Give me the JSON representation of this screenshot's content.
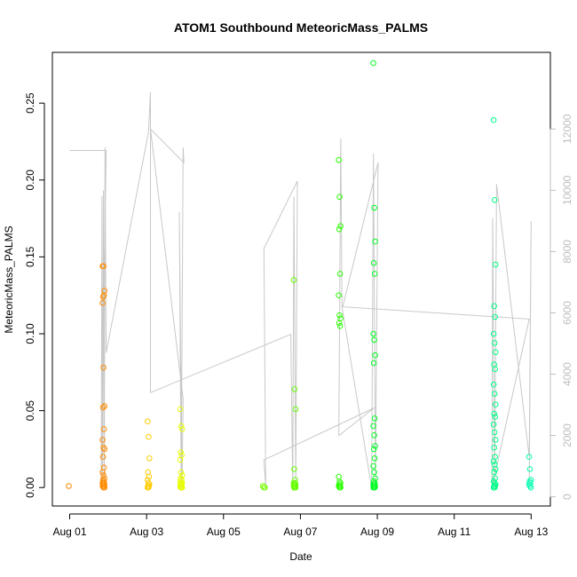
{
  "chart_data": {
    "type": "scatter",
    "title": "ATOM1 Southbound MeteoricMass_PALMS",
    "xlabel": "Date",
    "ylabel": "MeteoricMass_PALMS",
    "x_ticks": [
      "Aug 01",
      "Aug 03",
      "Aug 05",
      "Aug 07",
      "Aug 09",
      "Aug 11",
      "Aug 13"
    ],
    "x_tick_days": [
      1,
      3,
      5,
      7,
      9,
      11,
      13
    ],
    "xlim_days": [
      0.55,
      13.5
    ],
    "ylim": [
      -0.012,
      0.283
    ],
    "y_ticks": [
      0.0,
      0.05,
      0.1,
      0.15,
      0.2,
      0.25
    ],
    "y_tick_labels": [
      "0.00",
      "0.05",
      "0.10",
      "0.15",
      "0.20",
      "0.25"
    ],
    "y2_lim": [
      -300,
      14500
    ],
    "y2_ticks": [
      0,
      2000,
      4000,
      6000,
      8000,
      10000,
      12000
    ],
    "y2_tick_labels": [
      "0",
      "2000",
      "4000",
      "6000",
      "8000",
      "10000",
      "12000"
    ],
    "point_color_gradient": [
      "#ff8c00",
      "#ffd700",
      "#ffff00",
      "#7fff00",
      "#00ff00",
      "#00ff7f",
      "#00ffc8"
    ],
    "altitude_line_color": "#c8c8c8",
    "series": [
      {
        "x_day": 1.0,
        "color": "#ff8800",
        "values": [
          0.001
        ]
      },
      {
        "x_day": 1.88,
        "color": "#ff8c00",
        "values": [
          0.144,
          0.144,
          0.128,
          0.124,
          0.125,
          0.12,
          0.078,
          0.053,
          0.052,
          0.038,
          0.031,
          0.026,
          0.025,
          0.02,
          0.013,
          0.01,
          0.008,
          0.006,
          0.005,
          0.004,
          0.003,
          0.003,
          0.002,
          0.002,
          0.001,
          0.001,
          0.0,
          0.0
        ]
      },
      {
        "x_day": 3.05,
        "color": "#ffcc00",
        "values": [
          0.043,
          0.033,
          0.019,
          0.01,
          0.007,
          0.005,
          0.003,
          0.002,
          0.001,
          0.001,
          0.0,
          0.0
        ]
      },
      {
        "x_day": 3.9,
        "color": "#e8ff00",
        "values": [
          0.051,
          0.04,
          0.038,
          0.023,
          0.021,
          0.018,
          0.01,
          0.008,
          0.006,
          0.005,
          0.004,
          0.003,
          0.003,
          0.002,
          0.002,
          0.001,
          0.001,
          0.0,
          0.0,
          0.0
        ]
      },
      {
        "x_day": 6.05,
        "color": "#77ff00",
        "values": [
          0.001,
          0.0,
          0.0
        ]
      },
      {
        "x_day": 6.85,
        "color": "#66ff00",
        "values": [
          0.135,
          0.064,
          0.051,
          0.012,
          0.005,
          0.003,
          0.003,
          0.002,
          0.002,
          0.001,
          0.001,
          0.0,
          0.0,
          0.0,
          0.0
        ]
      },
      {
        "x_day": 8.02,
        "color": "#2aff00",
        "values": [
          0.213,
          0.189,
          0.17,
          0.168,
          0.139,
          0.125,
          0.112,
          0.11,
          0.107,
          0.105,
          0.007,
          0.004,
          0.003,
          0.002,
          0.001,
          0.001,
          0.0,
          0.0
        ]
      },
      {
        "x_day": 8.92,
        "color": "#00ff22",
        "values": [
          0.276,
          0.182,
          0.16,
          0.146,
          0.139,
          0.1,
          0.096,
          0.086,
          0.081,
          0.045,
          0.04,
          0.034,
          0.027,
          0.025,
          0.019,
          0.014,
          0.01,
          0.006,
          0.004,
          0.003,
          0.002,
          0.002,
          0.001,
          0.001,
          0.0,
          0.0,
          0.0
        ]
      },
      {
        "x_day": 12.05,
        "color": "#00ff88",
        "values": [
          0.239,
          0.187,
          0.145,
          0.118,
          0.111,
          0.1,
          0.094,
          0.088,
          0.08,
          0.077,
          0.067,
          0.061,
          0.054,
          0.048,
          0.046,
          0.041,
          0.036,
          0.031,
          0.026,
          0.02,
          0.017,
          0.015,
          0.012,
          0.01,
          0.006,
          0.004,
          0.003,
          0.002,
          0.001,
          0.001,
          0.0,
          0.0
        ]
      },
      {
        "x_day": 12.97,
        "color": "#00ffb0",
        "values": [
          0.02,
          0.012,
          0.005,
          0.004,
          0.003,
          0.002,
          0.001,
          0.0
        ]
      }
    ],
    "altitude_line": [
      [
        1.0,
        11300
      ],
      [
        1.95,
        11300
      ],
      [
        1.82,
        300
      ],
      [
        1.84,
        9800
      ],
      [
        1.86,
        200
      ],
      [
        1.88,
        10000
      ],
      [
        1.9,
        400
      ],
      [
        1.92,
        11400
      ],
      [
        1.95,
        4700
      ],
      [
        3.05,
        11900
      ],
      [
        3.1,
        13200
      ],
      [
        3.1,
        12000
      ],
      [
        3.95,
        3200
      ],
      [
        3.92,
        300
      ],
      [
        3.85,
        9300
      ],
      [
        3.9,
        200
      ],
      [
        3.95,
        11400
      ],
      [
        3.97,
        10900
      ],
      [
        3.1,
        12000
      ],
      [
        3.1,
        3400
      ],
      [
        6.75,
        5300
      ],
      [
        6.8,
        200
      ],
      [
        6.83,
        9800
      ],
      [
        6.88,
        300
      ],
      [
        6.92,
        10300
      ],
      [
        6.05,
        8100
      ],
      [
        6.1,
        300
      ],
      [
        6.05,
        1200
      ],
      [
        8.92,
        2900
      ],
      [
        8.0,
        2000
      ],
      [
        8.05,
        11700
      ],
      [
        8.08,
        6200
      ],
      [
        8.85,
        300
      ],
      [
        8.9,
        11200
      ],
      [
        8.95,
        300
      ],
      [
        9.02,
        10900
      ],
      [
        8.1,
        6200
      ],
      [
        12.95,
        5800
      ],
      [
        11.98,
        300
      ],
      [
        12.0,
        9100
      ],
      [
        12.05,
        300
      ],
      [
        12.1,
        10200
      ],
      [
        12.95,
        1300
      ],
      [
        13.0,
        9000
      ],
      [
        12.95,
        300
      ]
    ]
  }
}
